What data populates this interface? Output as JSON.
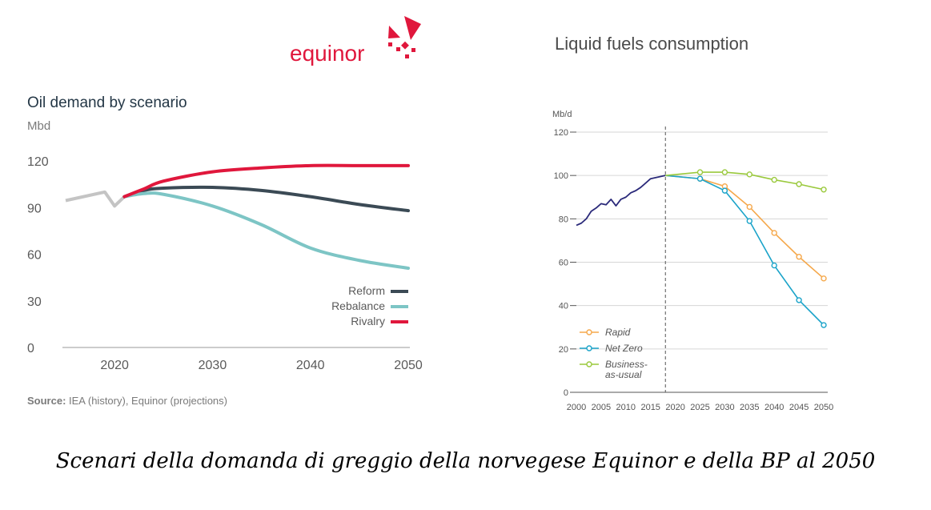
{
  "logo": {
    "text": "equinor"
  },
  "caption": "Scenari della domanda di greggio della norvegese Equinor e della BP al 2050",
  "chart_data": [
    {
      "type": "line",
      "title": "Oil demand by scenario",
      "ylabel": "Mbd",
      "xlim": [
        2015,
        2050
      ],
      "ylim": [
        0,
        120
      ],
      "xticks": [
        2020,
        2030,
        2040,
        2050
      ],
      "yticks": [
        0,
        30,
        60,
        90,
        120
      ],
      "grid": false,
      "legend_position": "bottom-right",
      "source_label": "Source:",
      "source_text": " IEA (history), Equinor (projections)",
      "history": {
        "color": "#c4c4c4",
        "x": [
          2015,
          2019,
          2020,
          2021
        ],
        "y": [
          94.5,
          100,
          91,
          97
        ]
      },
      "series": [
        {
          "name": "Reform",
          "color": "#3b4a55",
          "x": [
            2021,
            2023,
            2025,
            2030,
            2035,
            2040,
            2045,
            2050
          ],
          "y": [
            97,
            101,
            102.5,
            103,
            101,
            97,
            92,
            88
          ]
        },
        {
          "name": "Rebalance",
          "color": "#7dc5c5",
          "x": [
            2021,
            2023,
            2025,
            2030,
            2035,
            2040,
            2045,
            2050
          ],
          "y": [
            97,
            99,
            98.5,
            91,
            79,
            64,
            56,
            51
          ]
        },
        {
          "name": "Rivalry",
          "color": "#e0173c",
          "x": [
            2021,
            2023,
            2025,
            2030,
            2035,
            2040,
            2045,
            2050
          ],
          "y": [
            97,
            102,
            107,
            113,
            115.5,
            117,
            117,
            117
          ]
        }
      ]
    },
    {
      "type": "line",
      "title": "Liquid fuels consumption",
      "ylabel": "Mb/d",
      "xlim": [
        2000,
        2050
      ],
      "ylim": [
        0,
        120
      ],
      "xticks": [
        2000,
        2005,
        2010,
        2015,
        2020,
        2025,
        2030,
        2035,
        2040,
        2045,
        2050
      ],
      "yticks": [
        0,
        20,
        40,
        60,
        80,
        100,
        120
      ],
      "grid": true,
      "divider_x": 2018,
      "legend_position": "bottom-left",
      "history": {
        "color": "#2b2a7a",
        "x": [
          2000,
          2001,
          2002,
          2003,
          2004,
          2005,
          2006,
          2007,
          2008,
          2009,
          2010,
          2011,
          2012,
          2013,
          2014,
          2015,
          2016,
          2017,
          2018
        ],
        "y": [
          77,
          78,
          80,
          83.5,
          85,
          87,
          86.5,
          89,
          86,
          89,
          90,
          92,
          93,
          94.5,
          96.5,
          98.5,
          99,
          99.5,
          100
        ]
      },
      "series": [
        {
          "name": "Rapid",
          "color": "#f5a84b",
          "x": [
            2018,
            2025,
            2030,
            2035,
            2040,
            2045,
            2050
          ],
          "y": [
            100,
            98.5,
            95,
            85.5,
            73.5,
            62.5,
            52.5
          ]
        },
        {
          "name": "Net Zero",
          "color": "#1aa3c9",
          "x": [
            2018,
            2025,
            2030,
            2035,
            2040,
            2045,
            2050
          ],
          "y": [
            100,
            98.5,
            93,
            79,
            58.5,
            42.5,
            31
          ]
        },
        {
          "name": "Business-as-usual",
          "legend_lines": [
            "Business-",
            "as-usual"
          ],
          "color": "#9ac93c",
          "x": [
            2018,
            2025,
            2030,
            2035,
            2040,
            2045,
            2050
          ],
          "y": [
            100,
            101.5,
            101.5,
            100.5,
            98,
            96,
            93.5
          ]
        }
      ]
    }
  ]
}
